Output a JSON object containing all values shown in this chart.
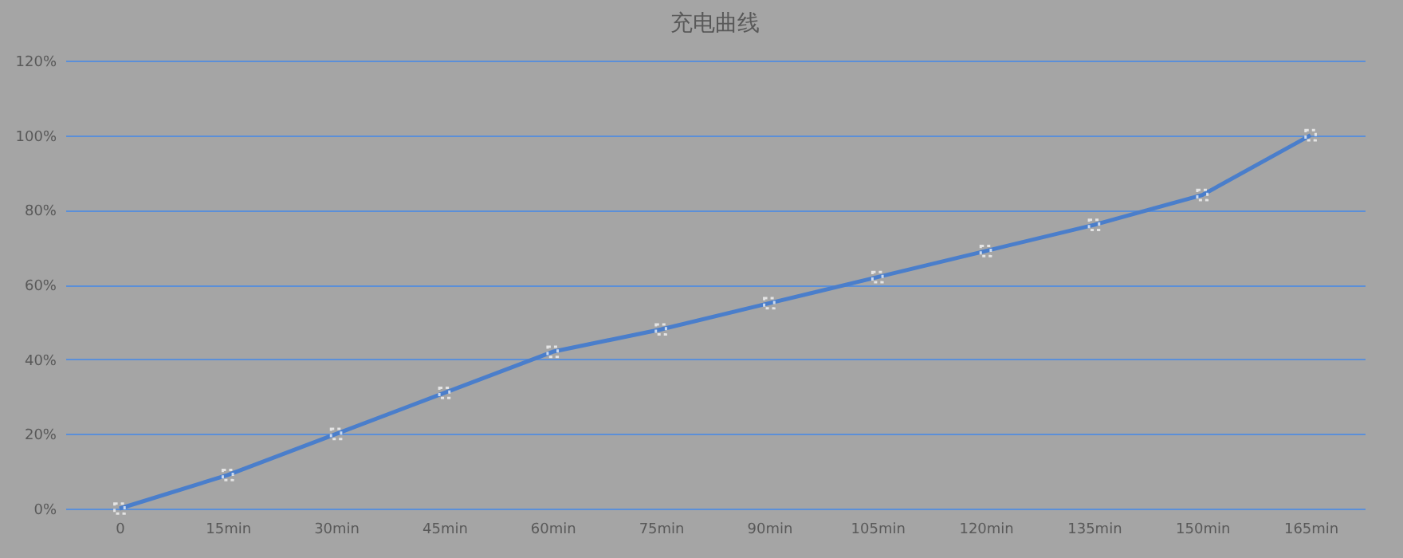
{
  "chart_data": {
    "type": "line",
    "title": "充电曲线",
    "categories": [
      "0",
      "15min",
      "30min",
      "45min",
      "60min",
      "75min",
      "90min",
      "105min",
      "120min",
      "135min",
      "150min",
      "165min"
    ],
    "series": [
      {
        "color": "#4a7ecb",
        "values": [
          0,
          9,
          20,
          31,
          42,
          48,
          55,
          62,
          69,
          76,
          84,
          100
        ]
      }
    ],
    "ylim": [
      0,
      120
    ],
    "yticks": [
      {
        "value": 0,
        "label": "0%"
      },
      {
        "value": 20,
        "label": "20%"
      },
      {
        "value": 40,
        "label": "40%"
      },
      {
        "value": 60,
        "label": "60%"
      },
      {
        "value": 80,
        "label": "80%"
      },
      {
        "value": 100,
        "label": "100%"
      },
      {
        "value": 120,
        "label": "120%"
      }
    ],
    "grid": "y",
    "legend": false,
    "marker": "square",
    "line_style": "solid"
  }
}
